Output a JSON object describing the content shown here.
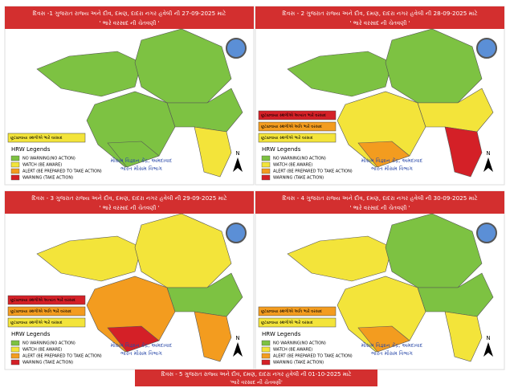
{
  "panels": [
    {
      "title": "દિવસ -1 ગુજરાત રાજ્ય અને દીવ, દમણ, દાદરા નગર હવેલી ની 27-09-2025 માટે",
      "subtitle": "' ભારે વરસાદ ની ચેતવણી '",
      "alerts": [
        {
          "text": "છૂટાછવાયા સ્થળોએ ભારે વરસાદ",
          "color": "#f3e43a"
        }
      ],
      "colors": {
        "kutch": "#7dc242",
        "north": "#7dc242",
        "saurashtra": "#7dc242",
        "saurashtra_south": "#7dc242",
        "central": "#7dc242",
        "south": "#f3e43a"
      }
    },
    {
      "title": "દિવસ - 2 ગુજરાત રાજ્ય અને દીવ, દમણ, દાદરા નગર હવેલી ની 28-09-2025 માટે",
      "subtitle": "' ભારે વરસાદ ની ચેતવણી '",
      "alerts": [
        {
          "text": "છૂટાછવાયા સ્થળોએ અત્યંત ભારે વરસાદ",
          "color": "#d42027"
        },
        {
          "text": "છૂટાછવાયા સ્થળોએ અતિ ભારે વરસાદ",
          "color": "#f39c1f"
        },
        {
          "text": "છૂટાછવાયા સ્થળોએ ભારે વરસાદ",
          "color": "#f3e43a"
        }
      ],
      "colors": {
        "kutch": "#7dc242",
        "north": "#7dc242",
        "saurashtra": "#f3e43a",
        "saurashtra_south": "#f39c1f",
        "central": "#f3e43a",
        "south": "#d42027"
      }
    },
    {
      "title": "દિવસ - 3 ગુજરાત રાજ્ય અને દીવ, દમણ, દાદરા નગર હવેલી ની 29-09-2025 માટે",
      "subtitle": "' ભારે વરસાદ ની ચેતવણી '",
      "alerts": [
        {
          "text": "છૂટાછવાયા સ્થળોએ અત્યંત ભારે વરસાદ",
          "color": "#d42027"
        },
        {
          "text": "છૂટાછવાયા સ્થળોએ અતિ ભારે વરસાદ",
          "color": "#f39c1f"
        },
        {
          "text": "છૂટાછવાયા સ્થળોએ ભારે વરસાદ",
          "color": "#f3e43a"
        }
      ],
      "colors": {
        "kutch": "#f3e43a",
        "north": "#f3e43a",
        "saurashtra": "#f39c1f",
        "saurashtra_south": "#d42027",
        "central": "#7dc242",
        "south": "#f39c1f"
      }
    },
    {
      "title": "દિવસ - 4 ગુજરાત રાજ્ય અને દીવ, દમણ, દાદરા નગર હવેલી ની 30-09-2025 માટે",
      "subtitle": "' ભારે વરસાદ ની ચેતવણી '",
      "alerts": [
        {
          "text": "છૂટાછવાયા સ્થળોએ અતિ ભારે વરસાદ",
          "color": "#f39c1f"
        },
        {
          "text": "છૂટાછવાયા સ્થળોએ ભારે વરસાદ",
          "color": "#f3e43a"
        }
      ],
      "colors": {
        "kutch": "#f3e43a",
        "north": "#7dc242",
        "saurashtra": "#f3e43a",
        "saurashtra_south": "#f39c1f",
        "central": "#7dc242",
        "south": "#f3e43a"
      }
    }
  ],
  "legend": {
    "title": "HRW Legends",
    "items": [
      {
        "label": "NO WARNING(NO ACTION)",
        "color": "#7dc242"
      },
      {
        "label": "WATCH (BE AWARE)",
        "color": "#f3e43a"
      },
      {
        "label": "ALERT (BE PREPARED TO TAKE ACTION)",
        "color": "#f39c1f"
      },
      {
        "label": "WARNING (TAKE ACTION)",
        "color": "#d42027"
      }
    ]
  },
  "office": [
    "મૌસમ વિજ્ઞાન કેંદ્ર, અમદાવાદ",
    "ભારત મૌસમ વિભાગ"
  ],
  "north": "N",
  "day5": {
    "title": "દિવસ - 5 ગુજરાત રાજ્ય અને દીવ, દમણ, દાદરા નગર હવેલી ની  01-10-2025 માટે",
    "subtitle": "'ભારે વરસાદ ની ચેતવણી'"
  }
}
